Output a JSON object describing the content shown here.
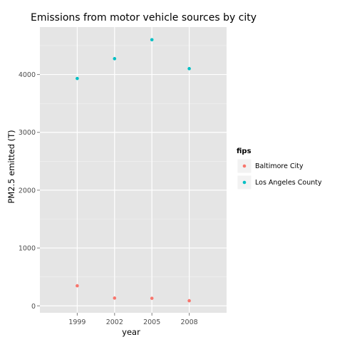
{
  "chart_data": {
    "type": "scatter",
    "title": "Emissions from  motor vehicle sources by city",
    "xlabel": "year",
    "ylabel": "PM2.5 emitted (T)",
    "x": [
      1999,
      2002,
      2005,
      2008
    ],
    "x_ticks": [
      "1999",
      "2002",
      "2005",
      "2008"
    ],
    "y_ticks": [
      0,
      1000,
      2000,
      3000,
      4000
    ],
    "ylim": [
      -120,
      4820
    ],
    "grid": true,
    "legend": {
      "title": "fips",
      "placement": "right"
    },
    "series": [
      {
        "name": "Baltimore City",
        "color": "#F8766D",
        "values": [
          346.8,
          134.3,
          130.4,
          88.3
        ]
      },
      {
        "name": "Los Angeles County",
        "color": "#00BFC4",
        "values": [
          3931.1,
          4274.0,
          4601.4,
          4101.3
        ]
      }
    ]
  }
}
